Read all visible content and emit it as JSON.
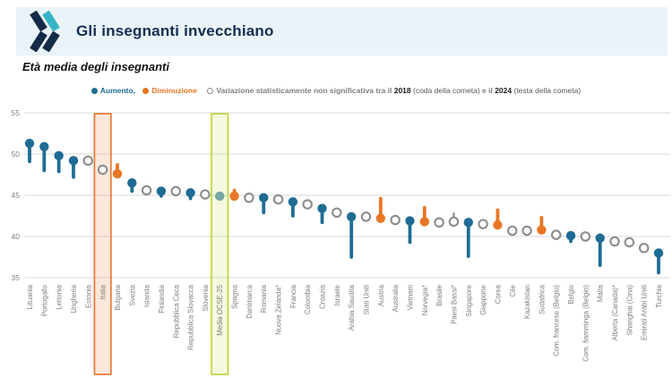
{
  "header": {
    "title": "Gli insegnanti invecchiano"
  },
  "subtitle": "Età media degli insegnanti",
  "legend": {
    "increase_label": "Aumento, ",
    "decrease_label": "Diminuzione ",
    "ns_label": "Variazione statisticamente non significativa tra il ",
    "year_tail": "2018",
    "tail_note": " (coda della cometa) ",
    "connector": "e il ",
    "year_head": "2024",
    "head_note": " (testa della cometa)"
  },
  "colors": {
    "increase": "#1e6c93",
    "decrease": "#e87725",
    "ns_stroke": "#8c8c8c",
    "average": "#76a7a1",
    "grid": "#d9d9d9",
    "axis_text": "#808080",
    "label_text": "#7f7f7f",
    "header_bg": "#e9f3f8",
    "title_navy": "#142e52",
    "logo_teal": "#36b5c6",
    "logo_navy": "#142b47",
    "italia_box_border": "#e8732c",
    "italia_box_fill": "rgba(236,125,58,0.18)",
    "ocse_box_border": "#b8d435",
    "ocse_box_fill": "rgba(200,223,90,0.20)"
  },
  "chart_data": {
    "type": "lollipop",
    "subtype": "comet-change-chart",
    "title": "Età media degli insegnanti",
    "xlabel": "",
    "ylabel": "",
    "ylim": [
      35,
      55
    ],
    "yticks": [
      35,
      40,
      45,
      50,
      55
    ],
    "grid": "horizontal",
    "legend_position": "top-center",
    "head_year": "2024",
    "tail_year": "2018",
    "points": [
      {
        "label": "Lituania",
        "change": "increase",
        "head_2024": 51.3,
        "tail_2018": 49.1,
        "highlight": null
      },
      {
        "label": "Portogallo",
        "change": "increase",
        "head_2024": 50.9,
        "tail_2018": 48.0,
        "highlight": null
      },
      {
        "label": "Lettonia",
        "change": "increase",
        "head_2024": 49.8,
        "tail_2018": 47.9,
        "highlight": null
      },
      {
        "label": "Ungheria",
        "change": "increase",
        "head_2024": 49.2,
        "tail_2018": 47.2,
        "highlight": null
      },
      {
        "label": "Estonia",
        "change": "ns",
        "head_2024": 49.2,
        "tail_2018": null,
        "highlight": null
      },
      {
        "label": "Italia",
        "change": "ns",
        "head_2024": 48.1,
        "tail_2018": null,
        "highlight": "italia"
      },
      {
        "label": "Bulgaria",
        "change": "decrease",
        "head_2024": 47.6,
        "tail_2018": 48.7,
        "highlight": null
      },
      {
        "label": "Svezia",
        "change": "increase",
        "head_2024": 46.5,
        "tail_2018": 45.5,
        "highlight": null
      },
      {
        "label": "Islanda",
        "change": "ns",
        "head_2024": 45.6,
        "tail_2018": null,
        "highlight": null
      },
      {
        "label": "Finlandia",
        "change": "increase",
        "head_2024": 45.5,
        "tail_2018": 44.9,
        "highlight": null
      },
      {
        "label": "Repubblica Ceca",
        "change": "ns",
        "head_2024": 45.5,
        "tail_2018": null,
        "highlight": null
      },
      {
        "label": "Repubblica Slovacca",
        "change": "increase",
        "head_2024": 45.3,
        "tail_2018": 44.6,
        "highlight": null
      },
      {
        "label": "Slovenia",
        "change": "ns",
        "head_2024": 45.1,
        "tail_2018": null,
        "highlight": null
      },
      {
        "label": "Media OCSE-25",
        "change": "average",
        "head_2024": 44.9,
        "tail_2018": null,
        "highlight": "ocse"
      },
      {
        "label": "Spagna",
        "change": "decrease",
        "head_2024": 44.9,
        "tail_2018": 45.6,
        "highlight": null
      },
      {
        "label": "Danimarca",
        "change": "ns",
        "head_2024": 44.7,
        "tail_2018": null,
        "highlight": null
      },
      {
        "label": "Romania",
        "change": "increase",
        "head_2024": 44.7,
        "tail_2018": 42.9,
        "highlight": null
      },
      {
        "label": "Nuova Zelanda*",
        "change": "ns",
        "head_2024": 44.5,
        "tail_2018": null,
        "highlight": null
      },
      {
        "label": "Francia",
        "change": "increase",
        "head_2024": 44.2,
        "tail_2018": 42.5,
        "highlight": null
      },
      {
        "label": "Colombia",
        "change": "ns",
        "head_2024": 43.9,
        "tail_2018": null,
        "highlight": null
      },
      {
        "label": "Croazia",
        "change": "increase",
        "head_2024": 43.4,
        "tail_2018": 41.7,
        "highlight": null
      },
      {
        "label": "Israele",
        "change": "ns",
        "head_2024": 42.9,
        "tail_2018": null,
        "highlight": null
      },
      {
        "label": "Arabia Saudita",
        "change": "increase",
        "head_2024": 42.4,
        "tail_2018": 37.5,
        "highlight": null
      },
      {
        "label": "Stati Uniti",
        "change": "ns",
        "head_2024": 42.4,
        "tail_2018": null,
        "highlight": null
      },
      {
        "label": "Austria",
        "change": "decrease",
        "head_2024": 42.2,
        "tail_2018": 44.6,
        "highlight": null
      },
      {
        "label": "Australia",
        "change": "ns",
        "head_2024": 42.0,
        "tail_2018": null,
        "highlight": null
      },
      {
        "label": "Vietnam",
        "change": "increase",
        "head_2024": 41.9,
        "tail_2018": 39.3,
        "highlight": null
      },
      {
        "label": "Norvegia*",
        "change": "decrease",
        "head_2024": 41.8,
        "tail_2018": 43.5,
        "highlight": null
      },
      {
        "label": "Brasile",
        "change": "ns",
        "head_2024": 41.7,
        "tail_2018": null,
        "highlight": null
      },
      {
        "label": "Paesi Bassi*",
        "change": "ns",
        "head_2024": 41.8,
        "tail_2018": 42.8,
        "highlight": null
      },
      {
        "label": "Singapore",
        "change": "increase",
        "head_2024": 41.7,
        "tail_2018": 37.6,
        "highlight": null
      },
      {
        "label": "Giappone",
        "change": "ns",
        "head_2024": 41.5,
        "tail_2018": null,
        "highlight": null
      },
      {
        "label": "Corea",
        "change": "decrease",
        "head_2024": 41.4,
        "tail_2018": 43.2,
        "highlight": null
      },
      {
        "label": "Cile",
        "change": "ns",
        "head_2024": 40.7,
        "tail_2018": null,
        "highlight": null
      },
      {
        "label": "Kazakistan",
        "change": "ns",
        "head_2024": 40.7,
        "tail_2018": null,
        "highlight": null
      },
      {
        "label": "Sudafrica",
        "change": "decrease",
        "head_2024": 40.8,
        "tail_2018": 42.3,
        "highlight": null
      },
      {
        "label": "Com. francese (Belgio)",
        "change": "ns",
        "head_2024": 40.2,
        "tail_2018": null,
        "highlight": null
      },
      {
        "label": "Belgio",
        "change": "increase",
        "head_2024": 40.1,
        "tail_2018": 39.4,
        "highlight": null
      },
      {
        "label": "Com. fiamminga (Belgio)",
        "change": "ns",
        "head_2024": 40.0,
        "tail_2018": null,
        "highlight": null
      },
      {
        "label": "Malta",
        "change": "increase",
        "head_2024": 39.8,
        "tail_2018": 36.5,
        "highlight": null
      },
      {
        "label": "Alberta (Canada)*",
        "change": "ns",
        "head_2024": 39.4,
        "tail_2018": null,
        "highlight": null
      },
      {
        "label": "Shanghai (Cina)",
        "change": "ns",
        "head_2024": 39.3,
        "tail_2018": null,
        "highlight": null
      },
      {
        "label": "Emirati Arabi Uniti",
        "change": "ns",
        "head_2024": 38.6,
        "tail_2018": null,
        "highlight": null
      },
      {
        "label": "Turchia",
        "change": "increase",
        "head_2024": 38.0,
        "tail_2018": 35.6,
        "highlight": null
      }
    ]
  }
}
